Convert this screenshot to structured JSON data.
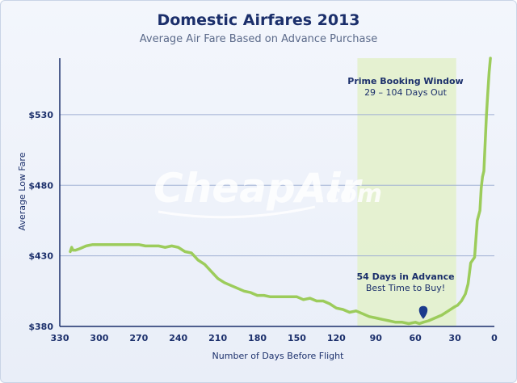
{
  "chart_data": {
    "type": "line",
    "title": "Domestic Airfares 2013",
    "subtitle": "Average Air Fare Based on Advance Purchase",
    "xlabel": "Number of Days Before Flight",
    "ylabel": "Average Low Fare",
    "xlim": [
      330,
      0
    ],
    "ylim": [
      380,
      570
    ],
    "x_ticks": [
      330,
      300,
      270,
      240,
      210,
      180,
      150,
      120,
      90,
      60,
      30,
      0
    ],
    "y_ticks": [
      380,
      430,
      480,
      530
    ],
    "y_tick_labels": [
      "$380",
      "$430",
      "$480",
      "$530"
    ],
    "grid": "horizontal",
    "line_color": "#9ccc5b",
    "series": [
      {
        "x": [
          322,
          321,
          320,
          318,
          315,
          310,
          305,
          300,
          295,
          290,
          285,
          280,
          275,
          270,
          265,
          260,
          255,
          250,
          245,
          240,
          235,
          230,
          228,
          225,
          220,
          215,
          210,
          205,
          200,
          195,
          190,
          185,
          180,
          175,
          170,
          165,
          160,
          155,
          150,
          145,
          140,
          135,
          130,
          125,
          120,
          115,
          110,
          105,
          100,
          95,
          90,
          85,
          80,
          75,
          70,
          65,
          60,
          57,
          54,
          50,
          45,
          40,
          35,
          30,
          28,
          25,
          22,
          20,
          18,
          15,
          13,
          11,
          10,
          9,
          8,
          7,
          6,
          5,
          4,
          3
        ],
        "y": [
          433,
          436,
          434,
          434,
          435,
          437,
          438,
          438,
          438,
          438,
          438,
          438,
          438,
          438,
          437,
          437,
          437,
          436,
          437,
          436,
          433,
          432,
          430,
          427,
          424,
          419,
          414,
          411,
          409,
          407,
          405,
          404,
          402,
          402,
          401,
          401,
          401,
          401,
          401,
          399,
          400,
          398,
          398,
          396,
          393,
          392,
          390,
          391,
          389,
          387,
          386,
          385,
          384,
          383,
          383,
          382,
          383,
          382,
          383,
          384,
          386,
          388,
          391,
          394,
          395,
          398,
          403,
          410,
          425,
          429,
          455,
          462,
          478,
          486,
          490,
          510,
          530,
          545,
          560,
          570
        ]
      }
    ],
    "shaded_region": {
      "x": [
        104,
        29
      ]
    },
    "annotations": [
      {
        "text": "Prime Booking Window",
        "sub": "29 – 104 Days Out"
      },
      {
        "text": "54 Days in Advance",
        "sub": "Best Time to Buy!",
        "x": 54,
        "y": 383
      }
    ],
    "watermark": {
      "brand": "CheapAir",
      "tld": ".com"
    }
  }
}
